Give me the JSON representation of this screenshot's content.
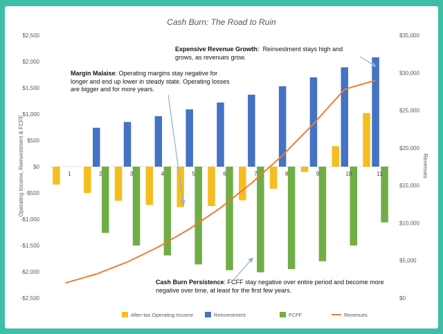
{
  "chart_data": {
    "type": "bar",
    "title": "Cash Burn: The Road to Ruin",
    "ylabel": "Operating Income, Reinvestment & FCFF",
    "y2label": "Revenues",
    "ylim": [
      -2500,
      2500
    ],
    "y2lim": [
      0,
      35000
    ],
    "y_ticks": [
      "$2,500",
      "$2,000",
      "$1,500",
      "$1,000",
      "$500",
      "$0",
      "-$500",
      "-$1,000",
      "-$1,500",
      "-$2,000",
      "-$2,500"
    ],
    "y2_ticks": [
      "$35,000",
      "$30,000",
      "$25,000",
      "$20,000",
      "$15,000",
      "$10,000",
      "$5,000",
      "$0"
    ],
    "categories": [
      "1",
      "2",
      "3",
      "4",
      "5",
      "6",
      "7",
      "8",
      "9",
      "10",
      "11"
    ],
    "series": [
      {
        "name": "After-tax Operating Income",
        "type": "bar",
        "color": "#f5bd1f",
        "values": [
          -340,
          -500,
          -650,
          -730,
          -770,
          -750,
          -640,
          -420,
          -100,
          390,
          1020
        ]
      },
      {
        "name": "Reinvestment",
        "type": "bar",
        "color": "#4472c4",
        "values": [
          0,
          740,
          850,
          960,
          1090,
          1220,
          1370,
          1530,
          1700,
          1890,
          2080
        ]
      },
      {
        "name": "FCFF",
        "type": "bar",
        "color": "#70ad47",
        "values": [
          0,
          -1260,
          -1500,
          -1690,
          -1860,
          -1970,
          -2010,
          -1950,
          -1800,
          -1500,
          -1060
        ]
      },
      {
        "name": "Revenues",
        "type": "line",
        "axis": "right",
        "color": "#ed7d31",
        "values": [
          2000,
          3200,
          4800,
          6800,
          9200,
          12000,
          15300,
          19000,
          23200,
          27800,
          29000
        ]
      }
    ],
    "legend_position": "bottom"
  },
  "annotations": [
    {
      "title": "Expensive Revenue Growth:",
      "text": "Reinvestment stays high and grows, as revenues grow."
    },
    {
      "title": "Margin Malaise",
      "text": ": Operating margins stay negative for longer and end up lower in steady state. Operating losses are bigger and for more years."
    },
    {
      "title": "Cash Burn Persistence",
      "text": ": FCFF stay negative over entire period and become more negative over time, at least for the first few years."
    }
  ]
}
